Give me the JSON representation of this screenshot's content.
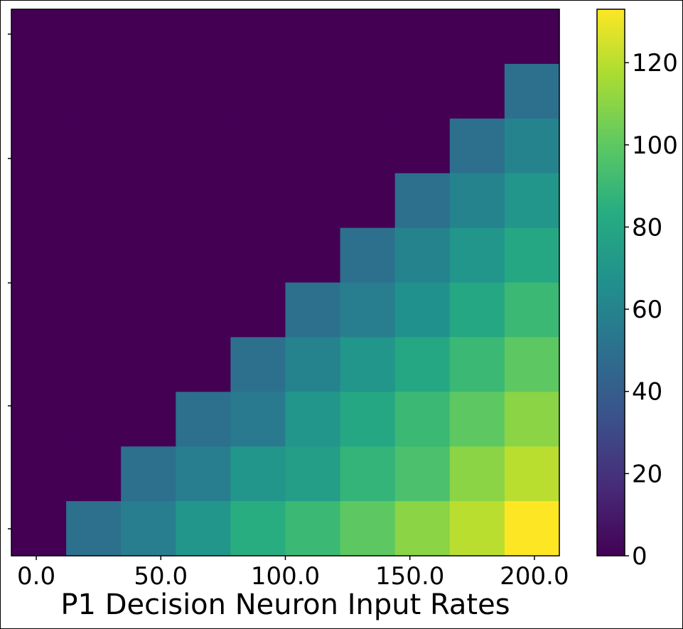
{
  "chart_data": {
    "type": "heatmap",
    "colormap": "viridis",
    "vmin": 0,
    "vmax": 133,
    "xlabel": "P1 Decision Neuron Input Rates",
    "x_tick_labels": [
      "0.0",
      "50.0",
      "100.0",
      "150.0",
      "200.0"
    ],
    "x_tick_values": [
      0,
      50,
      100,
      150,
      200
    ],
    "x_range": [
      -10,
      210
    ],
    "colorbar_ticks": [
      0,
      20,
      40,
      60,
      80,
      100,
      120
    ],
    "colorbar_tick_labels": [
      "0",
      "20",
      "40",
      "60",
      "80",
      "100",
      "120"
    ],
    "rows": 10,
    "cols": 10,
    "values": [
      [
        0,
        0,
        0,
        0,
        0,
        0,
        0,
        0,
        0,
        0
      ],
      [
        0,
        0,
        0,
        0,
        0,
        0,
        0,
        0,
        0,
        50
      ],
      [
        0,
        0,
        0,
        0,
        0,
        0,
        0,
        0,
        50,
        60
      ],
      [
        0,
        0,
        0,
        0,
        0,
        0,
        0,
        50,
        60,
        70
      ],
      [
        0,
        0,
        0,
        0,
        0,
        0,
        50,
        60,
        70,
        80
      ],
      [
        0,
        0,
        0,
        0,
        0,
        50,
        57,
        67,
        80,
        90
      ],
      [
        0,
        0,
        0,
        0,
        50,
        60,
        70,
        80,
        90,
        100
      ],
      [
        0,
        0,
        0,
        50,
        55,
        70,
        80,
        90,
        100,
        110
      ],
      [
        0,
        0,
        50,
        57,
        70,
        75,
        88,
        95,
        110,
        120
      ],
      [
        0,
        50,
        57,
        70,
        84,
        90,
        100,
        110,
        120,
        133
      ]
    ]
  }
}
